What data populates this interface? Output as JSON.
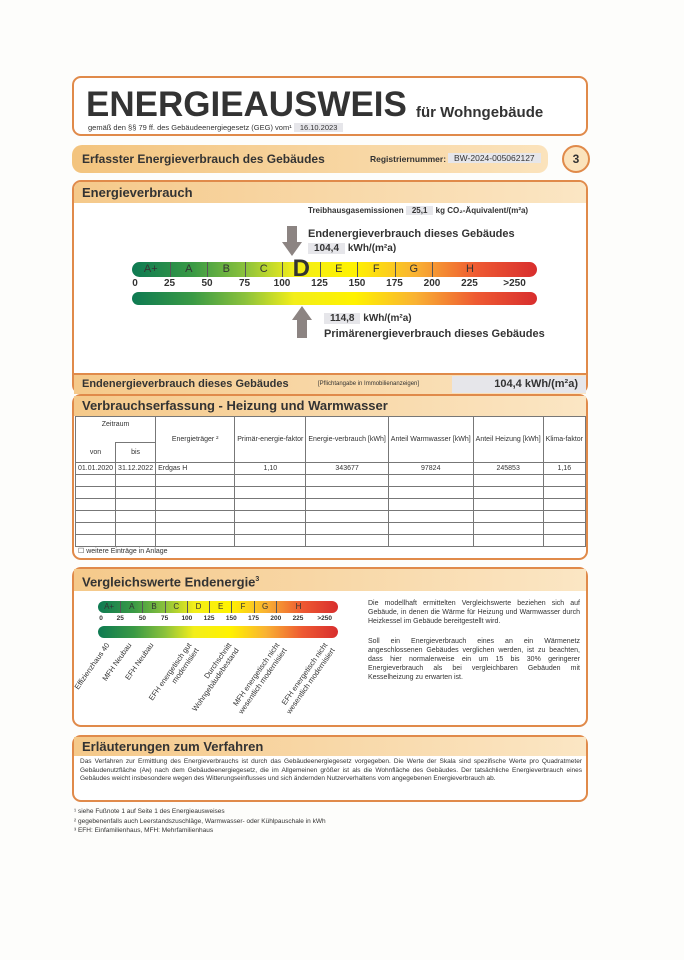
{
  "header": {
    "title": "ENERGIEAUSWEIS",
    "subtitle": "für Wohngebäude",
    "law": "gemäß den §§ 79 ff. des Gebäudeenergiegesetz (GEG) vom¹",
    "date": "16.10.2023"
  },
  "section_bar": {
    "title": "Erfasster Energieverbrauch des Gebäudes",
    "reg_label": "Registriernummer:",
    "reg_number": "BW-2024-005062127",
    "page": "3"
  },
  "energy": {
    "title": "Energieverbrauch",
    "ghg_label": "Treibhausgasemissionen",
    "ghg_value": "25,1",
    "ghg_unit": "kg CO₂-Äquivalent/(m²a)",
    "end_label": "Endenergieverbrauch dieses Gebäudes",
    "end_value": "104,4",
    "unit": "kWh/(m²a)",
    "primary_value": "114,8",
    "primary_label": "Primärenergieverbrauch dieses Gebäudes",
    "classes": [
      "A+",
      "A",
      "B",
      "C",
      "D",
      "E",
      "F",
      "G",
      "H"
    ],
    "active_class": "D",
    "ticks": [
      "0",
      "25",
      "50",
      "75",
      "100",
      "125",
      "150",
      "175",
      "200",
      "225",
      ">250"
    ]
  },
  "pflicht": {
    "label": "Endenergieverbrauch dieses Gebäudes",
    "note": "[Pflichtangabe in Immobilienanzeigen]",
    "value": "104,4 kWh/(m²a)"
  },
  "verbrauch": {
    "title": "Verbrauchserfassung - Heizung und Warmwasser",
    "headers": {
      "zeitraum": "Zeitraum",
      "von": "von",
      "bis": "bis",
      "traeger": "Energieträger ²",
      "pef": "Primär-energie-faktor",
      "ev": "Energie-verbrauch [kWh]",
      "ww": "Anteil Warmwasser [kWh]",
      "hz": "Anteil Heizung [kWh]",
      "klima": "Klima-faktor"
    },
    "rows": [
      [
        "01.01.2020",
        "31.12.2022",
        "Erdgas H",
        "1,10",
        "343677",
        "97824",
        "245853",
        "1,16"
      ]
    ],
    "more": "☐ weitere Einträge in Anlage"
  },
  "vergleich": {
    "title": "Vergleichswerte Endenergie",
    "sup": "3",
    "labels": [
      "Effizienzhaus 40",
      "MFH Neubau",
      "EFH Neubau",
      "EFH energetisch gut modernisiert",
      "Durchschnitt Wohngebäudebestand",
      "MFH energetisch nicht wesentlich modernisiert",
      "EFH energetisch nicht wesentlich modernisiert"
    ],
    "text1": "Die modellhaft ermittelten Vergleichswerte beziehen sich auf Gebäude, in denen die Wärme für Heizung und Warmwasser durch Heizkessel im Gebäude bereitgestellt wird.",
    "text2": "Soll ein Energieverbrauch eines an ein Wärmenetz angeschlossenen Gebäudes verglichen werden, ist zu beachten, dass hier normalerweise ein um 15 bis 30% geringerer Energieverbrauch als bei vergleichbaren Gebäuden mit Kesselheizung zu erwarten ist."
  },
  "erlaeuterung": {
    "title": "Erläuterungen zum Verfahren",
    "text": "Das Verfahren zur Ermittlung des Energieverbrauchs ist durch das Gebäudeenergiegesetz vorgegeben. Die Werte der Skala sind spezifische Werte pro Quadratmeter Gebäudenutzfläche (Aɴ) nach dem Gebäudeenergiegesetz, die im Allgemeinen größer ist als die Wohnfläche des Gebäudes. Der tatsächliche Energieverbrauch eines Gebäudes weicht insbesondere wegen des Witterungseinflusses und sich ändernden Nutzerverhaltens vom angegebenen Energieverbrauch ab."
  },
  "footnotes": [
    "¹ siehe Fußnote 1 auf Seite 1 des Energieausweises",
    "² gegebenenfalls auch Leerstandszuschläge, Warmwasser- oder Kühlpauschale in kWh",
    "³ EFH: Einfamilienhaus, MFH: Mehrfamilienhaus"
  ]
}
